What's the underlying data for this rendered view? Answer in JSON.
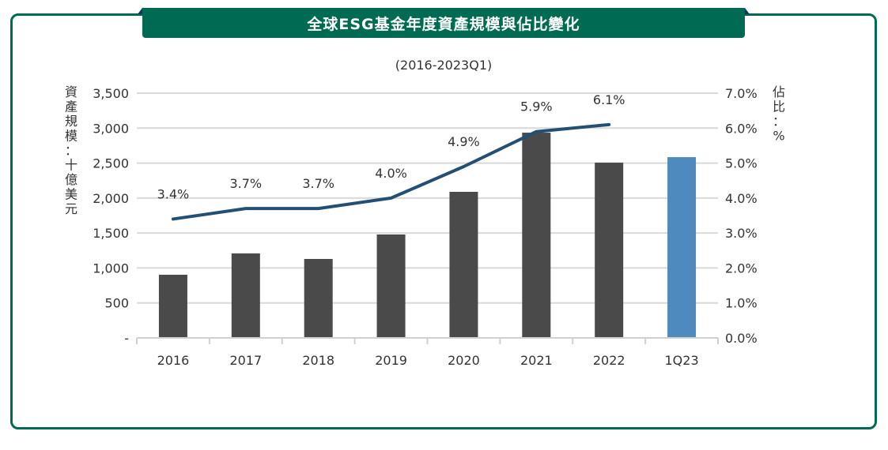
{
  "header": {
    "title": "全球ESG基金年度資產規模與佔比變化"
  },
  "chart_data": {
    "type": "bar",
    "title": "全球ESG基金年度資產規模與佔比變化",
    "subtitle": "(2016-2023Q1)",
    "categories": [
      "2016",
      "2017",
      "2018",
      "2019",
      "2020",
      "2021",
      "2022",
      "1Q23"
    ],
    "series": [
      {
        "name": "資產規模",
        "type": "bar",
        "axis": "left",
        "values": [
          903,
          1208,
          1129,
          1479,
          2089,
          2935,
          2506,
          2585
        ],
        "colors": [
          "#4a4a4a",
          "#4a4a4a",
          "#4a4a4a",
          "#4a4a4a",
          "#4a4a4a",
          "#4a4a4a",
          "#4a4a4a",
          "#4f8abf"
        ]
      },
      {
        "name": "佔比",
        "type": "line",
        "axis": "right",
        "values": [
          3.4,
          3.7,
          3.7,
          4.0,
          4.9,
          5.9,
          6.1,
          null
        ],
        "labels": [
          "3.4%",
          "3.7%",
          "3.7%",
          "4.0%",
          "4.9%",
          "5.9%",
          "6.1%",
          ""
        ],
        "color": "#234f74"
      }
    ],
    "ylabel": "資產規模：十億美元",
    "y2label": "佔比：%",
    "ylim": [
      0,
      3500
    ],
    "y2lim": [
      0,
      7
    ],
    "yticks": [
      "-",
      "500",
      "1,000",
      "1,500",
      "2,000",
      "2,500",
      "3,000",
      "3,500"
    ],
    "y2ticks": [
      "0.0%",
      "1.0%",
      "2.0%",
      "3.0%",
      "4.0%",
      "5.0%",
      "6.0%",
      "7.0%"
    ],
    "grid": true,
    "legend": "none"
  }
}
